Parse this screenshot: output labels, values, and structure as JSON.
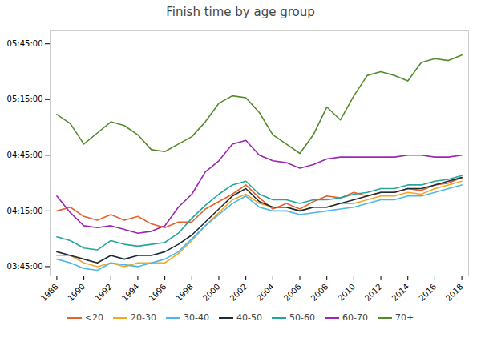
{
  "chart_data": {
    "type": "line",
    "title": "Finish time by age group",
    "x": [
      1988,
      1989,
      1990,
      1991,
      1992,
      1993,
      1994,
      1995,
      1996,
      1997,
      1998,
      1999,
      2000,
      2001,
      2002,
      2003,
      2004,
      2005,
      2006,
      2007,
      2008,
      2009,
      2010,
      2011,
      2012,
      2013,
      2014,
      2015,
      2016,
      2017,
      2018
    ],
    "series": [
      {
        "name": "<20",
        "color": "#e8602c",
        "values": [
          255,
          257,
          252,
          250,
          253,
          250,
          252,
          248,
          246,
          249,
          249,
          256,
          260,
          264,
          269,
          262,
          256,
          259,
          256,
          260,
          263,
          262,
          265,
          263,
          265,
          265,
          267,
          266,
          269,
          270,
          273
        ]
      },
      {
        "name": "20-30",
        "color": "#f5a623",
        "values": [
          231,
          231,
          227,
          225,
          227,
          225,
          227,
          227,
          227,
          232,
          239,
          247,
          254,
          261,
          264,
          259,
          257,
          257,
          255,
          257,
          257,
          259,
          259,
          261,
          263,
          263,
          265,
          264,
          267,
          269,
          271
        ]
      },
      {
        "name": "30-40",
        "color": "#4ab8e8",
        "values": [
          229,
          227,
          224,
          223,
          227,
          226,
          225,
          227,
          229,
          233,
          240,
          247,
          253,
          259,
          263,
          257,
          255,
          255,
          253,
          254,
          255,
          256,
          257,
          259,
          261,
          261,
          263,
          263,
          265,
          267,
          269
        ]
      },
      {
        "name": "40-50",
        "color": "#1c2b36",
        "values": [
          233,
          231,
          229,
          227,
          231,
          229,
          231,
          231,
          233,
          237,
          242,
          249,
          256,
          263,
          267,
          260,
          257,
          257,
          255,
          257,
          257,
          259,
          261,
          263,
          265,
          265,
          267,
          267,
          269,
          271,
          273
        ]
      },
      {
        "name": "50-60",
        "color": "#26a69a",
        "values": [
          241,
          239,
          235,
          234,
          239,
          237,
          236,
          237,
          238,
          243,
          251,
          258,
          264,
          269,
          271,
          264,
          261,
          261,
          259,
          261,
          261,
          262,
          264,
          265,
          267,
          267,
          269,
          269,
          271,
          272,
          274
        ]
      },
      {
        "name": "60-70",
        "color": "#9c27b0",
        "values": [
          263,
          254,
          247,
          246,
          247,
          245,
          243,
          244,
          247,
          257,
          264,
          276,
          282,
          291,
          293,
          285,
          282,
          281,
          278,
          280,
          283,
          284,
          284,
          284,
          284,
          284,
          285,
          285,
          284,
          284,
          285
        ]
      },
      {
        "name": "70+",
        "color": "#558b2f",
        "values": [
          307,
          302,
          291,
          297,
          303,
          301,
          296,
          288,
          287,
          291,
          295,
          303,
          313,
          317,
          316,
          308,
          296,
          291,
          286,
          296,
          311,
          304,
          317,
          328,
          330,
          328,
          325,
          335,
          337,
          336,
          339
        ]
      }
    ],
    "xlim": [
      1987.5,
      2018.5
    ],
    "xticks": [
      1988,
      1990,
      1992,
      1994,
      1996,
      1998,
      2000,
      2002,
      2004,
      2006,
      2008,
      2010,
      2012,
      2014,
      2016,
      2018
    ],
    "ylim": [
      220,
      352
    ],
    "yticks": [
      {
        "value": 225,
        "label": "03:45:00"
      },
      {
        "value": 255,
        "label": "04:15:00"
      },
      {
        "value": 285,
        "label": "04:45:00"
      },
      {
        "value": 315,
        "label": "05:15:00"
      },
      {
        "value": 345,
        "label": "05:45:00"
      }
    ],
    "grid": false,
    "legend": "bottom"
  }
}
